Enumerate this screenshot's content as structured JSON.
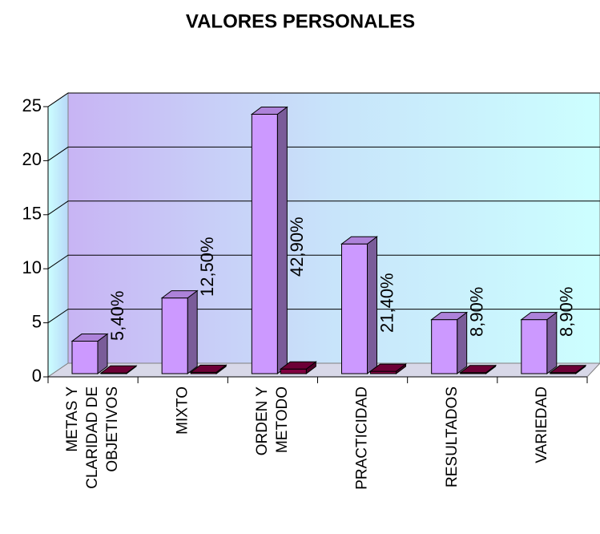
{
  "chart_data": {
    "type": "bar3d",
    "title": "VALORES PERSONALES",
    "categories": [
      [
        "METAS Y",
        "CLARIDAD DE",
        "OBJETIVOS"
      ],
      [
        "MIXTO"
      ],
      [
        "ORDEN Y",
        "METODO"
      ],
      [
        "PRACTICIDAD"
      ],
      [
        "RESULTADOS"
      ],
      [
        "VARIEDAD"
      ]
    ],
    "series": [
      {
        "color": "#cc99ff",
        "values": [
          3,
          7,
          24,
          12,
          5,
          5
        ]
      },
      {
        "color": "#800040",
        "values": [
          0.054,
          0.125,
          0.429,
          0.214,
          0.089,
          0.089
        ],
        "value_labels": [
          "5,40%",
          "12,50%",
          "42,90%",
          "21,40%",
          "8,90%",
          "8,90%"
        ]
      }
    ],
    "ylim": [
      0,
      25
    ],
    "yticks": [
      0,
      5,
      10,
      15,
      20,
      25
    ],
    "grid": true
  }
}
